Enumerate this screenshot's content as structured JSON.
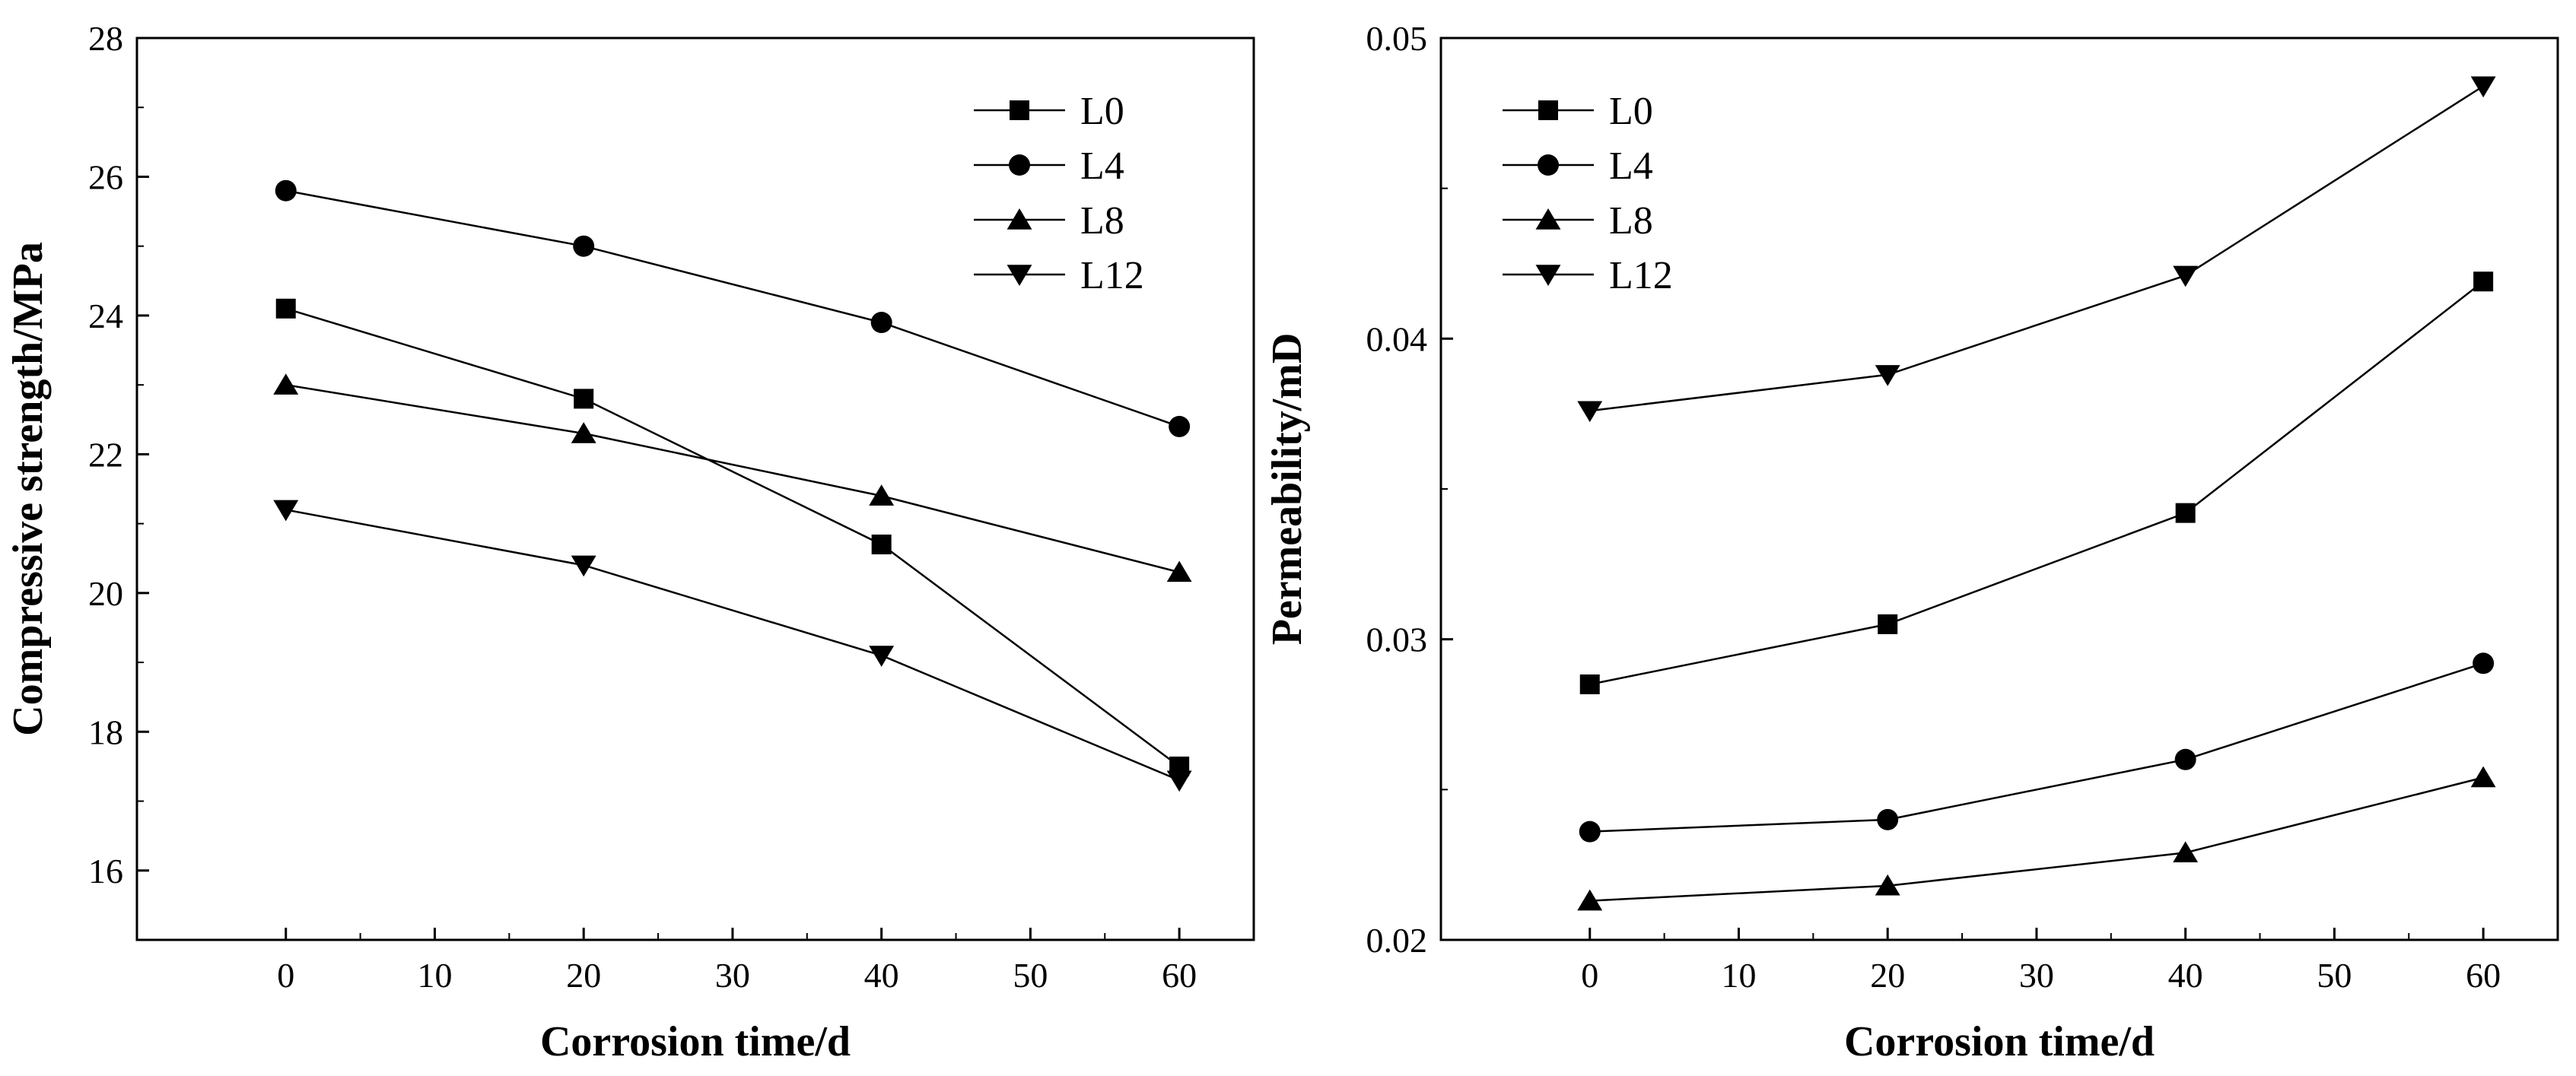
{
  "chart_data": [
    {
      "type": "line",
      "x": [
        0,
        20,
        40,
        60
      ],
      "xlabel": "Corrosion time/d",
      "ylabel": "Compressive strength/MPa",
      "xlim": [
        -10,
        65
      ],
      "ylim": [
        15,
        28
      ],
      "xticks": [
        "0",
        "10",
        "20",
        "30",
        "40",
        "50",
        "60"
      ],
      "yticks": [
        "16",
        "18",
        "20",
        "22",
        "24",
        "26",
        "28"
      ],
      "legend_position": "top-right",
      "series": [
        {
          "name": "L0",
          "marker": "square",
          "values": [
            24.1,
            22.8,
            20.7,
            17.5
          ]
        },
        {
          "name": "L4",
          "marker": "circle",
          "values": [
            25.8,
            25.0,
            23.9,
            22.4
          ]
        },
        {
          "name": "L8",
          "marker": "triangle-up",
          "values": [
            23.0,
            22.3,
            21.4,
            20.3
          ]
        },
        {
          "name": "L12",
          "marker": "triangle-down",
          "values": [
            21.2,
            20.4,
            19.1,
            17.3
          ]
        }
      ]
    },
    {
      "type": "line",
      "x": [
        0,
        20,
        40,
        60
      ],
      "xlabel": "Corrosion time/d",
      "ylabel": "Permeability/mD",
      "xlim": [
        -10,
        65
      ],
      "ylim": [
        0.02,
        0.05
      ],
      "xticks": [
        "0",
        "10",
        "20",
        "30",
        "40",
        "50",
        "60"
      ],
      "yticks": [
        "0.02",
        "0.03",
        "0.04",
        "0.05"
      ],
      "legend_position": "top-left",
      "series": [
        {
          "name": "L0",
          "marker": "square",
          "values": [
            0.0285,
            0.0305,
            0.0342,
            0.0419
          ]
        },
        {
          "name": "L4",
          "marker": "circle",
          "values": [
            0.0236,
            0.024,
            0.026,
            0.0292
          ]
        },
        {
          "name": "L8",
          "marker": "triangle-up",
          "values": [
            0.0213,
            0.0218,
            0.0229,
            0.0254
          ]
        },
        {
          "name": "L12",
          "marker": "triangle-down",
          "values": [
            0.0376,
            0.0388,
            0.0421,
            0.0484
          ]
        }
      ]
    }
  ]
}
